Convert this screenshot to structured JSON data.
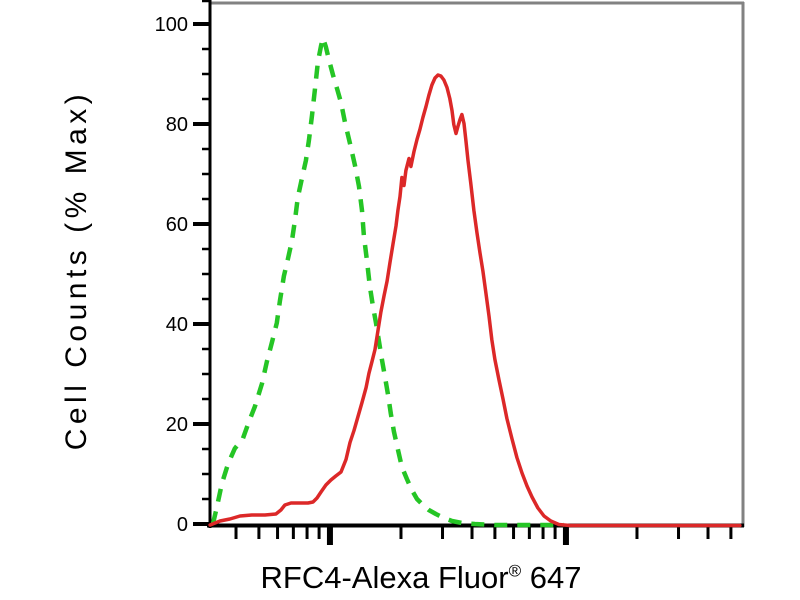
{
  "colors": {
    "background": "#ffffff",
    "frame": "#828282",
    "axis": "#000000",
    "tick_label": "#000000",
    "green_dashed": "#25c525",
    "red_solid": "#dc2828"
  },
  "y_axis": {
    "label": "Cell Counts (% Max)",
    "tick_labels": [
      "0",
      "20",
      "40",
      "60",
      "80",
      "100"
    ],
    "major_tick_values": [
      0,
      20,
      40,
      60,
      80,
      100
    ],
    "minor_tick_step": 5,
    "max_minor": 105
  },
  "x_axis": {
    "label_before_sup": "RFC4-Alexa Fluor",
    "label_sup": "®",
    "label_after_sup": " 647",
    "scale": "log",
    "tick_labels_visible": false,
    "major_tick_decades": [
      1,
      2
    ],
    "minor_tick_decades": [
      0.602,
      0.699,
      0.778,
      0.845,
      0.903,
      0.954,
      1.301,
      1.477,
      1.602,
      1.699,
      1.778,
      1.845,
      1.903,
      1.954,
      2.301,
      2.477,
      2.602,
      2.699
    ]
  },
  "chart_data": {
    "type": "line",
    "title": "",
    "xlabel": "RFC4-Alexa Fluor® 647",
    "ylabel": "Cell Counts (% Max)",
    "x_scale": "log10; unlabeled axis, x given in decade units (thick major ticks at decades 1 and 2)",
    "xlim": [
      0.496,
      2.746
    ],
    "ylim": [
      0,
      105
    ],
    "grid": false,
    "legend": "none",
    "series": [
      {
        "name": "green-dashed",
        "style": "dashed",
        "color": "#25c525",
        "peak": {
          "x": 0.97,
          "y": 97
        },
        "points": [
          [
            0.504,
            0.0
          ],
          [
            0.521,
            3.4
          ],
          [
            0.542,
            8.1
          ],
          [
            0.568,
            12.0
          ],
          [
            0.597,
            15.1
          ],
          [
            0.631,
            17.1
          ],
          [
            0.657,
            20.5
          ],
          [
            0.682,
            23.5
          ],
          [
            0.712,
            28.1
          ],
          [
            0.733,
            32.5
          ],
          [
            0.754,
            36.3
          ],
          [
            0.775,
            40.2
          ],
          [
            0.788,
            44.6
          ],
          [
            0.805,
            49.6
          ],
          [
            0.822,
            53.0
          ],
          [
            0.839,
            56.6
          ],
          [
            0.852,
            60.8
          ],
          [
            0.864,
            65.3
          ],
          [
            0.881,
            69.1
          ],
          [
            0.898,
            72.7
          ],
          [
            0.911,
            76.7
          ],
          [
            0.924,
            81.7
          ],
          [
            0.936,
            86.7
          ],
          [
            0.949,
            92.4
          ],
          [
            0.962,
            95.6
          ],
          [
            0.97,
            97.2
          ],
          [
            0.983,
            95.4
          ],
          [
            0.996,
            92.8
          ],
          [
            1.013,
            89.8
          ],
          [
            1.03,
            87.1
          ],
          [
            1.047,
            84.3
          ],
          [
            1.064,
            80.3
          ],
          [
            1.085,
            76.1
          ],
          [
            1.106,
            71.7
          ],
          [
            1.123,
            67.5
          ],
          [
            1.136,
            62.7
          ],
          [
            1.144,
            57.6
          ],
          [
            1.157,
            52.6
          ],
          [
            1.169,
            47.6
          ],
          [
            1.182,
            43.6
          ],
          [
            1.195,
            40.2
          ],
          [
            1.208,
            36.5
          ],
          [
            1.22,
            32.9
          ],
          [
            1.233,
            29.5
          ],
          [
            1.246,
            25.9
          ],
          [
            1.258,
            22.1
          ],
          [
            1.271,
            18.5
          ],
          [
            1.288,
            14.9
          ],
          [
            1.305,
            11.4
          ],
          [
            1.326,
            9.0
          ],
          [
            1.347,
            6.8
          ],
          [
            1.369,
            5.0
          ],
          [
            1.394,
            3.8
          ],
          [
            1.419,
            2.8
          ],
          [
            1.449,
            2.0
          ],
          [
            1.483,
            1.2
          ],
          [
            1.517,
            0.6
          ],
          [
            1.559,
            0.2
          ],
          [
            1.614,
            0.0
          ],
          [
            1.699,
            -0.2
          ],
          [
            1.784,
            -0.2
          ],
          [
            1.869,
            -0.2
          ],
          [
            1.953,
            -0.2
          ],
          [
            1.99,
            -0.2
          ]
        ]
      },
      {
        "name": "red-solid",
        "style": "solid",
        "color": "#dc2828",
        "peak": {
          "x": 1.458,
          "y": 90
        },
        "points": [
          [
            0.492,
            -0.2
          ],
          [
            0.534,
            0.6
          ],
          [
            0.576,
            1.0
          ],
          [
            0.619,
            1.6
          ],
          [
            0.669,
            1.8
          ],
          [
            0.725,
            1.8
          ],
          [
            0.771,
            2.0
          ],
          [
            0.792,
            2.8
          ],
          [
            0.809,
            3.8
          ],
          [
            0.835,
            4.2
          ],
          [
            0.873,
            4.2
          ],
          [
            0.907,
            4.2
          ],
          [
            0.928,
            4.4
          ],
          [
            0.945,
            5.2
          ],
          [
            0.962,
            6.4
          ],
          [
            0.983,
            7.8
          ],
          [
            1.004,
            8.8
          ],
          [
            1.025,
            9.6
          ],
          [
            1.047,
            10.4
          ],
          [
            1.068,
            12.9
          ],
          [
            1.085,
            16.3
          ],
          [
            1.102,
            18.7
          ],
          [
            1.119,
            21.5
          ],
          [
            1.136,
            24.3
          ],
          [
            1.153,
            27.3
          ],
          [
            1.165,
            30.1
          ],
          [
            1.178,
            32.5
          ],
          [
            1.191,
            34.9
          ],
          [
            1.203,
            38.6
          ],
          [
            1.216,
            42.4
          ],
          [
            1.229,
            45.6
          ],
          [
            1.242,
            48.6
          ],
          [
            1.254,
            52.2
          ],
          [
            1.267,
            56.0
          ],
          [
            1.28,
            59.6
          ],
          [
            1.288,
            62.7
          ],
          [
            1.297,
            65.5
          ],
          [
            1.305,
            69.3
          ],
          [
            1.314,
            67.7
          ],
          [
            1.322,
            70.7
          ],
          [
            1.335,
            73.1
          ],
          [
            1.343,
            71.5
          ],
          [
            1.356,
            74.5
          ],
          [
            1.369,
            76.9
          ],
          [
            1.381,
            78.9
          ],
          [
            1.394,
            81.3
          ],
          [
            1.407,
            83.5
          ],
          [
            1.419,
            85.7
          ],
          [
            1.432,
            87.8
          ],
          [
            1.445,
            89.2
          ],
          [
            1.458,
            89.8
          ],
          [
            1.47,
            89.6
          ],
          [
            1.483,
            88.8
          ],
          [
            1.496,
            87.3
          ],
          [
            1.508,
            85.1
          ],
          [
            1.517,
            82.7
          ],
          [
            1.525,
            79.9
          ],
          [
            1.534,
            78.1
          ],
          [
            1.542,
            79.5
          ],
          [
            1.551,
            80.9
          ],
          [
            1.559,
            81.9
          ],
          [
            1.568,
            80.1
          ],
          [
            1.576,
            76.7
          ],
          [
            1.585,
            72.7
          ],
          [
            1.597,
            68.1
          ],
          [
            1.61,
            62.7
          ],
          [
            1.623,
            58.2
          ],
          [
            1.636,
            54.2
          ],
          [
            1.648,
            50.6
          ],
          [
            1.661,
            46.2
          ],
          [
            1.674,
            41.6
          ],
          [
            1.686,
            36.9
          ],
          [
            1.699,
            32.9
          ],
          [
            1.716,
            28.9
          ],
          [
            1.733,
            25.1
          ],
          [
            1.75,
            21.1
          ],
          [
            1.771,
            17.1
          ],
          [
            1.792,
            13.3
          ],
          [
            1.814,
            10.2
          ],
          [
            1.835,
            7.6
          ],
          [
            1.856,
            5.4
          ],
          [
            1.881,
            3.2
          ],
          [
            1.907,
            1.6
          ],
          [
            1.936,
            0.6
          ],
          [
            1.97,
            -0.1
          ],
          [
            2.017,
            -0.3
          ],
          [
            2.144,
            -0.3
          ],
          [
            2.356,
            -0.3
          ],
          [
            2.568,
            -0.3
          ],
          [
            2.737,
            -0.3
          ]
        ]
      }
    ]
  }
}
